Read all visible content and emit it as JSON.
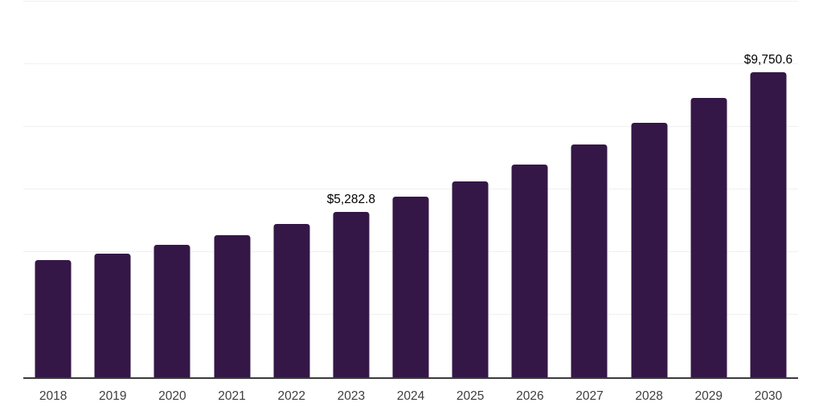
{
  "chart_data": {
    "type": "bar",
    "title": "",
    "xlabel": "",
    "ylabel": "",
    "categories": [
      "2018",
      "2019",
      "2020",
      "2021",
      "2022",
      "2023",
      "2024",
      "2025",
      "2026",
      "2027",
      "2028",
      "2029",
      "2030"
    ],
    "values": [
      3740,
      3950,
      4220,
      4540,
      4900,
      5282.8,
      5760,
      6250,
      6800,
      7430,
      8120,
      8920,
      9750.6
    ],
    "point_labels": [
      null,
      null,
      null,
      null,
      null,
      "$5,282.8",
      null,
      null,
      null,
      null,
      null,
      null,
      "$9,750.6"
    ],
    "ylim": [
      0,
      12000
    ],
    "gridline_interval": 2000,
    "grid": "horizontal",
    "legend": "none",
    "y_axis_tick_labels": "none",
    "colors": {
      "bar": "#341747",
      "gridline": "#f0f0f0",
      "axis_line": "#3a3a3a",
      "tick_label": "#3d3d3d",
      "value_label": "#000000",
      "background": "#ffffff"
    }
  }
}
